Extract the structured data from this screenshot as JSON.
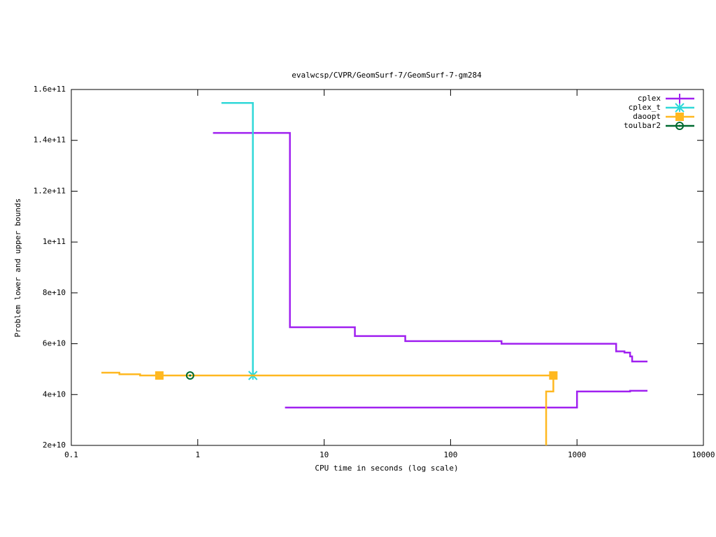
{
  "chart_data": {
    "type": "step",
    "title": "evalwcsp/CVPR/GeomSurf-7/GeomSurf-7-gm284",
    "x_label": "CPU time in seconds (log scale)",
    "y_label": "Problem lower and upper bounds",
    "xscale": "log",
    "xlim": [
      0.1,
      10000
    ],
    "xticks": [
      0.1,
      1,
      10,
      100,
      1000,
      10000
    ],
    "ylim": [
      20000000000,
      160000000000
    ],
    "yticks": [
      {
        "value": 20000000000,
        "label": "2e+10"
      },
      {
        "value": 40000000000,
        "label": "4e+10"
      },
      {
        "value": 60000000000,
        "label": "6e+10"
      },
      {
        "value": 80000000000,
        "label": "8e+10"
      },
      {
        "value": 100000000000,
        "label": "1e+11"
      },
      {
        "value": 120000000000,
        "label": "1.2e+11"
      },
      {
        "value": 140000000000,
        "label": "1.4e+11"
      },
      {
        "value": 160000000000,
        "label": "1.6e+11"
      }
    ],
    "legend": "top-right",
    "series": [
      {
        "name": "cplex",
        "color": "#a020f0",
        "marker": "plus",
        "upper": {
          "x": [
            1.32,
            5.36,
            17.5,
            43.8,
            253,
            2040,
            2375,
            2630,
            2730,
            3610
          ],
          "values": [
            142900000000,
            66500000000,
            63000000000,
            61000000000,
            60000000000,
            57000000000,
            56500000000,
            55000000000,
            53000000000,
            53000000000
          ]
        },
        "lower": {
          "x": [
            4.9,
            1000,
            2630,
            3610
          ],
          "values": [
            34900000000,
            41200000000,
            41500000000,
            41500000000
          ]
        },
        "markers": {
          "x": [],
          "values": []
        }
      },
      {
        "name": "cplex_t",
        "color": "#30d8d8",
        "marker": "star",
        "upper": {
          "x": [
            1.54,
            2.73
          ],
          "values": [
            154700000000,
            47500000000
          ]
        },
        "lower": {
          "x": [],
          "values": []
        },
        "markers": {
          "x": [
            2.73
          ],
          "values": [
            47500000000
          ]
        }
      },
      {
        "name": "daoopt",
        "color": "#ffb820",
        "marker": "square",
        "upper": {
          "x": [
            0.173,
            0.24,
            0.35,
            650
          ],
          "values": [
            48600000000,
            48000000000,
            47500000000,
            47500000000
          ]
        },
        "lower": {
          "x": [
            570,
            650
          ],
          "values": [
            20000000000,
            47500000000
          ]
        },
        "lower_step": {
          "x": [
            570,
            650
          ],
          "values": [
            41200000000,
            47500000000
          ]
        },
        "markers": {
          "x": [
            0.497,
            650
          ],
          "values": [
            47500000000,
            47500000000
          ]
        }
      },
      {
        "name": "toulbar2",
        "color": "#006a30",
        "marker": "circle",
        "upper": {
          "x": [],
          "values": []
        },
        "lower": {
          "x": [],
          "values": []
        },
        "markers": {
          "x": [
            0.87
          ],
          "values": [
            47500000000
          ]
        }
      }
    ]
  }
}
